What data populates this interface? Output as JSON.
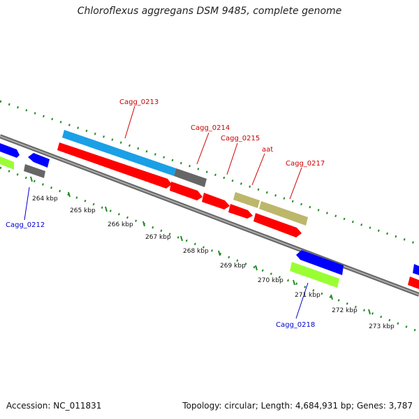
{
  "title": "Chloroflexus aggregans DSM 9485, complete genome",
  "footer": {
    "accession": "Accession: NC_011831",
    "topology": "Topology: circular; Length: 4,684,931 bp; Genes: 3,787"
  },
  "colors": {
    "backbone": "#888888",
    "tick": "#228b22",
    "cds": "#ff0000",
    "gene": "#1aa0e6",
    "blue_gene": "#0000ff",
    "lime_gene": "#99ff33",
    "pseudo": "#666666",
    "tan": "#bdb76b",
    "label_forward": "#cc0000",
    "label_reverse": "#0000cc"
  },
  "ticks": [
    "264 kbp",
    "265 kbp",
    "266 kbp",
    "267 kbp",
    "268 kbp",
    "269 kbp",
    "270 kbp",
    "271 kbp",
    "272 kbp",
    "273 kbp"
  ],
  "gene_labels": {
    "cagg_0212": "Cagg_0212",
    "cagg_0213": "Cagg_0213",
    "cagg_0214": "Cagg_0214",
    "cagg_0215": "Cagg_0215",
    "aat": "aat",
    "cagg_0217": "Cagg_0217",
    "cagg_0218": "Cagg_0218"
  }
}
